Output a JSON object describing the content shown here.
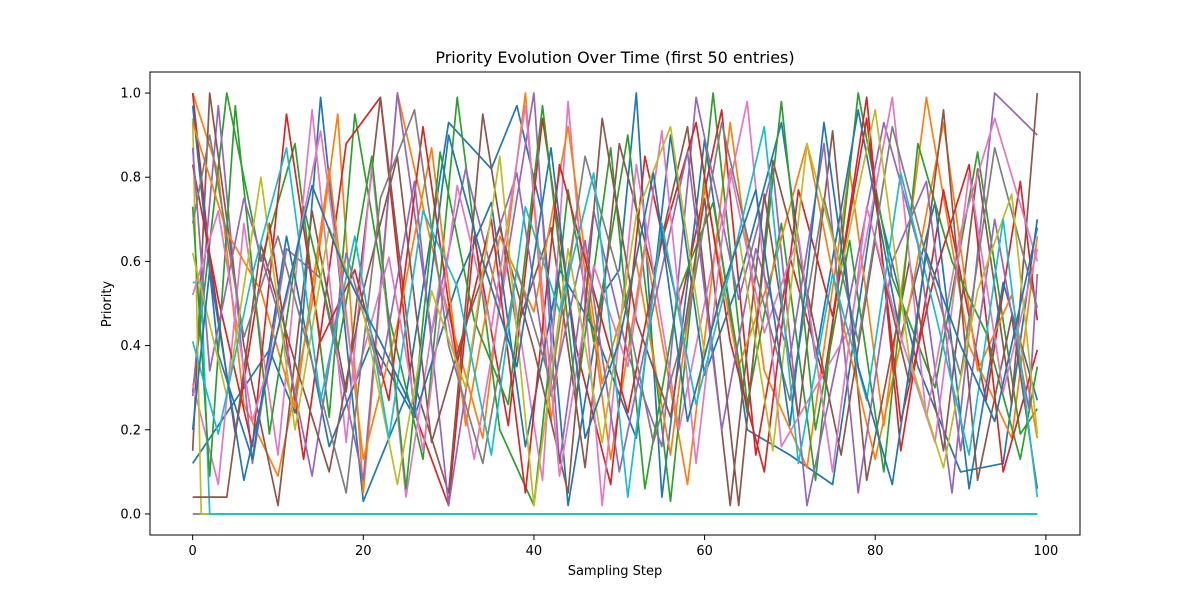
{
  "chart_data": {
    "type": "line",
    "title": "Priority Evolution Over Time (first 50 entries)",
    "xlabel": "Sampling Step",
    "ylabel": "Priority",
    "xlim": [
      -5,
      104
    ],
    "ylim": [
      -0.05,
      1.05
    ],
    "xticks": [
      0,
      20,
      40,
      60,
      80,
      100
    ],
    "yticks": [
      0.0,
      0.2,
      0.4,
      0.6,
      0.8,
      1.0
    ],
    "xtick_labels": [
      "0",
      "20",
      "40",
      "60",
      "80",
      "100"
    ],
    "ytick_labels": [
      "0.0",
      "0.2",
      "0.4",
      "0.6",
      "0.8",
      "1.0"
    ],
    "grid": false,
    "legend": "none",
    "colors": [
      "#1f77b4",
      "#ff7f0e",
      "#2ca02c",
      "#d62728",
      "#9467bd",
      "#8c564b",
      "#e377c2",
      "#7f7f7f",
      "#bcbd22",
      "#17becf"
    ],
    "series": [
      {
        "x": [
          0,
          9,
          12,
          15,
          20,
          25,
          30,
          35,
          38,
          41,
          44,
          48,
          50,
          52,
          55,
          60,
          65,
          70,
          75,
          80,
          85,
          90,
          95,
          99
        ],
        "values": [
          0.12,
          0.39,
          0.24,
          0.99,
          0.03,
          0.28,
          0.93,
          0.82,
          0.97,
          0.71,
          0.02,
          0.52,
          0.58,
          1.0,
          0.04,
          0.89,
          0.2,
          0.14,
          0.07,
          0.76,
          0.35,
          0.1,
          0.12,
          0.7
        ]
      },
      {
        "x": [
          0,
          3,
          6,
          10,
          14,
          17,
          20,
          24,
          29,
          34,
          39,
          42,
          45,
          49,
          53,
          58,
          63,
          67,
          72,
          77,
          81,
          86,
          91,
          96,
          99
        ],
        "values": [
          1.0,
          0.81,
          0.26,
          0.09,
          0.5,
          0.95,
          0.05,
          1.0,
          0.55,
          0.18,
          1.0,
          0.22,
          0.72,
          0.13,
          0.64,
          0.07,
          0.93,
          0.34,
          0.11,
          0.82,
          0.21,
          0.99,
          0.4,
          0.18,
          0.66
        ]
      },
      {
        "x": [
          0,
          4,
          8,
          12,
          16,
          19,
          23,
          27,
          31,
          36,
          40,
          44,
          47,
          51,
          56,
          61,
          65,
          69,
          73,
          78,
          82,
          87,
          92,
          97,
          99
        ],
        "values": [
          0.29,
          1.0,
          0.6,
          0.88,
          0.23,
          0.95,
          0.47,
          0.13,
          0.99,
          0.2,
          0.02,
          0.77,
          0.41,
          0.9,
          0.03,
          1.0,
          0.26,
          0.69,
          0.08,
          1.0,
          0.56,
          0.3,
          0.86,
          0.19,
          0.25
        ]
      },
      {
        "x": [
          0,
          2,
          5,
          9,
          13,
          18,
          22,
          26,
          30,
          33,
          37,
          41,
          45,
          49,
          53,
          57,
          62,
          66,
          70,
          74,
          79,
          83,
          88,
          93,
          97,
          99
        ],
        "values": [
          1.0,
          0.61,
          0.19,
          0.69,
          0.13,
          0.88,
          0.99,
          0.24,
          0.02,
          0.66,
          0.21,
          0.94,
          0.39,
          0.07,
          0.85,
          0.48,
          0.96,
          0.14,
          0.61,
          0.32,
          0.99,
          0.15,
          0.77,
          0.27,
          0.79,
          0.46
        ]
      },
      {
        "x": [
          0,
          3,
          7,
          11,
          15,
          20,
          24,
          28,
          32,
          36,
          40,
          43,
          47,
          51,
          55,
          59,
          64,
          68,
          72,
          76,
          81,
          85,
          89,
          94,
          99
        ],
        "values": [
          0.28,
          0.97,
          0.12,
          0.63,
          0.56,
          0.08,
          1.0,
          0.43,
          0.82,
          0.5,
          1.0,
          0.12,
          0.72,
          0.38,
          0.16,
          0.99,
          0.51,
          0.82,
          0.02,
          0.41,
          0.93,
          0.64,
          0.05,
          1.0,
          0.9
        ]
      },
      {
        "x": [
          0,
          2,
          6,
          10,
          14,
          18,
          22,
          26,
          30,
          34,
          38,
          42,
          46,
          50,
          54,
          58,
          63,
          67,
          71,
          75,
          79,
          84,
          88,
          92,
          96,
          99
        ],
        "values": [
          0.15,
          1.0,
          0.4,
          0.02,
          0.72,
          0.29,
          0.99,
          0.31,
          0.05,
          0.95,
          0.44,
          0.68,
          0.11,
          0.88,
          0.57,
          0.92,
          0.02,
          0.76,
          0.23,
          0.91,
          0.08,
          0.6,
          0.15,
          0.82,
          0.26,
          1.0
        ]
      },
      {
        "x": [
          0,
          3,
          6,
          10,
          14,
          18,
          21,
          25,
          29,
          33,
          37,
          41,
          44,
          48,
          52,
          57,
          61,
          65,
          69,
          73,
          77,
          82,
          86,
          90,
          94,
          99
        ],
        "values": [
          0.31,
          0.07,
          0.69,
          0.14,
          0.96,
          0.17,
          0.83,
          0.04,
          0.56,
          0.13,
          0.61,
          0.08,
          0.98,
          0.02,
          0.83,
          0.2,
          0.6,
          0.98,
          0.16,
          0.3,
          0.44,
          0.99,
          0.23,
          0.67,
          0.94,
          0.6
        ]
      },
      {
        "x": [
          0,
          3,
          4,
          99
        ],
        "values": [
          0.0,
          0.0,
          0.0,
          0.0
        ]
      },
      {
        "x": [
          0,
          1,
          3,
          4,
          99
        ],
        "values": [
          0.94,
          0.0,
          0.0,
          0.0,
          0.0
        ]
      },
      {
        "x": [
          0,
          1,
          2,
          3,
          99
        ],
        "values": [
          0.55,
          0.55,
          0.0,
          0.0,
          0.0
        ]
      },
      {
        "x": [
          0,
          3,
          7,
          11,
          16,
          21,
          26,
          31,
          35,
          39,
          43,
          47,
          52,
          56,
          60,
          64,
          69,
          73,
          78,
          83,
          87,
          91,
          95,
          99
        ],
        "values": [
          0.97,
          0.38,
          0.13,
          0.66,
          0.16,
          0.41,
          0.23,
          0.55,
          0.74,
          0.16,
          0.58,
          0.44,
          0.18,
          0.9,
          0.33,
          0.55,
          0.93,
          0.37,
          0.96,
          0.42,
          0.74,
          0.06,
          0.55,
          0.27
        ]
      },
      {
        "x": [
          0,
          4,
          8,
          12,
          16,
          20,
          24,
          28,
          32,
          36,
          40,
          44,
          48,
          52,
          56,
          60,
          64,
          68,
          72,
          76,
          80,
          84,
          88,
          92,
          96,
          99
        ],
        "values": [
          0.93,
          0.67,
          0.53,
          0.25,
          0.82,
          0.13,
          0.45,
          0.87,
          0.21,
          0.66,
          0.48,
          0.92,
          0.31,
          0.6,
          0.14,
          0.78,
          0.35,
          0.58,
          0.88,
          0.47,
          0.13,
          0.5,
          0.93,
          0.34,
          0.52,
          0.18
        ]
      },
      {
        "x": [
          0,
          2,
          5,
          9,
          13,
          17,
          21,
          25,
          29,
          33,
          37,
          41,
          45,
          49,
          53,
          57,
          61,
          65,
          69,
          73,
          77,
          81,
          85,
          89,
          93,
          97,
          99
        ],
        "values": [
          0.73,
          0.09,
          0.97,
          0.19,
          0.73,
          0.39,
          0.85,
          0.06,
          0.86,
          0.46,
          0.26,
          0.97,
          0.28,
          0.87,
          0.06,
          0.53,
          0.74,
          0.24,
          0.98,
          0.2,
          0.65,
          0.1,
          0.88,
          0.6,
          0.43,
          0.13,
          0.35
        ]
      },
      {
        "x": [
          0,
          3,
          7,
          11,
          15,
          19,
          23,
          27,
          31,
          35,
          39,
          43,
          47,
          51,
          55,
          59,
          63,
          67,
          71,
          75,
          79,
          83,
          87,
          91,
          95,
          99
        ],
        "values": [
          0.83,
          0.51,
          0.16,
          0.95,
          0.41,
          0.58,
          0.27,
          0.92,
          0.36,
          0.7,
          0.05,
          0.83,
          0.53,
          0.24,
          0.65,
          0.93,
          0.41,
          0.1,
          0.77,
          0.47,
          0.94,
          0.22,
          0.57,
          0.83,
          0.1,
          0.39
        ]
      },
      {
        "x": [
          0,
          2,
          6,
          10,
          14,
          18,
          22,
          26,
          30,
          34,
          38,
          42,
          46,
          50,
          54,
          58,
          62,
          66,
          70,
          74,
          78,
          82,
          86,
          90,
          94,
          98,
          99
        ],
        "values": [
          0.87,
          0.34,
          0.75,
          0.48,
          0.09,
          0.62,
          0.33,
          0.79,
          0.02,
          0.56,
          0.81,
          0.28,
          0.65,
          0.1,
          0.49,
          0.86,
          0.2,
          0.63,
          0.37,
          0.88,
          0.05,
          0.6,
          0.79,
          0.15,
          0.7,
          0.25,
          0.57
        ]
      },
      {
        "x": [
          0,
          4,
          8,
          12,
          16,
          20,
          24,
          28,
          32,
          36,
          40,
          44,
          48,
          52,
          56,
          60,
          64,
          68,
          72,
          76,
          80,
          84,
          88,
          92,
          96,
          99
        ],
        "values": [
          0.04,
          0.04,
          0.64,
          0.36,
          0.1,
          0.53,
          0.85,
          0.17,
          0.45,
          0.68,
          0.39,
          0.05,
          0.94,
          0.46,
          0.23,
          0.75,
          0.02,
          0.84,
          0.53,
          0.14,
          0.65,
          0.31,
          0.96,
          0.08,
          0.47,
          0.06
        ]
      },
      {
        "x": [
          0,
          3,
          7,
          11,
          15,
          19,
          23,
          27,
          31,
          35,
          39,
          43,
          47,
          51,
          55,
          59,
          63,
          67,
          71,
          75,
          79,
          83,
          87,
          91,
          95,
          99
        ],
        "values": [
          0.52,
          0.72,
          0.22,
          0.51,
          0.91,
          0.31,
          0.61,
          0.15,
          0.78,
          0.44,
          0.97,
          0.09,
          0.59,
          0.35,
          0.91,
          0.12,
          0.82,
          0.43,
          0.66,
          0.1,
          0.73,
          0.42,
          0.17,
          0.81,
          0.29,
          0.63
        ]
      },
      {
        "x": [
          0,
          2,
          6,
          10,
          14,
          18,
          22,
          26,
          30,
          34,
          38,
          42,
          46,
          50,
          54,
          58,
          62,
          66,
          70,
          74,
          78,
          82,
          86,
          90,
          94,
          99
        ],
        "values": [
          0.69,
          0.9,
          0.42,
          0.66,
          0.36,
          0.05,
          0.75,
          0.96,
          0.4,
          0.12,
          0.58,
          0.31,
          0.85,
          0.56,
          0.17,
          0.46,
          0.93,
          0.57,
          0.27,
          0.75,
          0.41,
          0.92,
          0.61,
          0.33,
          0.87,
          0.49
        ]
      },
      {
        "x": [
          0,
          4,
          8,
          12,
          16,
          20,
          24,
          28,
          32,
          36,
          40,
          44,
          48,
          52,
          56,
          60,
          64,
          68,
          72,
          76,
          80,
          84,
          88,
          92,
          96,
          99
        ],
        "values": [
          0.62,
          0.28,
          0.8,
          0.2,
          0.68,
          0.48,
          0.07,
          0.53,
          0.3,
          0.85,
          0.02,
          0.63,
          0.17,
          0.71,
          0.92,
          0.38,
          0.66,
          0.15,
          0.88,
          0.58,
          0.96,
          0.37,
          0.11,
          0.53,
          0.76,
          0.19
        ]
      },
      {
        "x": [
          0,
          3,
          7,
          11,
          15,
          19,
          23,
          27,
          31,
          35,
          39,
          43,
          47,
          51,
          55,
          59,
          63,
          67,
          71,
          75,
          79,
          83,
          87,
          91,
          95,
          99
        ],
        "values": [
          0.41,
          0.19,
          0.57,
          0.87,
          0.27,
          0.66,
          0.18,
          0.72,
          0.54,
          0.14,
          0.73,
          0.48,
          0.81,
          0.04,
          0.69,
          0.26,
          0.58,
          0.92,
          0.12,
          0.57,
          0.27,
          0.81,
          0.48,
          0.14,
          0.7,
          0.04
        ]
      },
      {
        "x": [
          0,
          2,
          6,
          10,
          14,
          18,
          22,
          26,
          30,
          34,
          38,
          42,
          46,
          50,
          54,
          58,
          62,
          66,
          70,
          74,
          78,
          82,
          86,
          90,
          94,
          99
        ],
        "values": [
          0.2,
          0.58,
          0.08,
          0.44,
          0.78,
          0.57,
          0.41,
          0.24,
          0.9,
          0.6,
          0.35,
          0.87,
          0.18,
          0.41,
          0.81,
          0.22,
          0.53,
          0.77,
          0.21,
          0.93,
          0.35,
          0.07,
          0.62,
          0.4,
          0.22,
          0.68
        ]
      }
    ]
  }
}
